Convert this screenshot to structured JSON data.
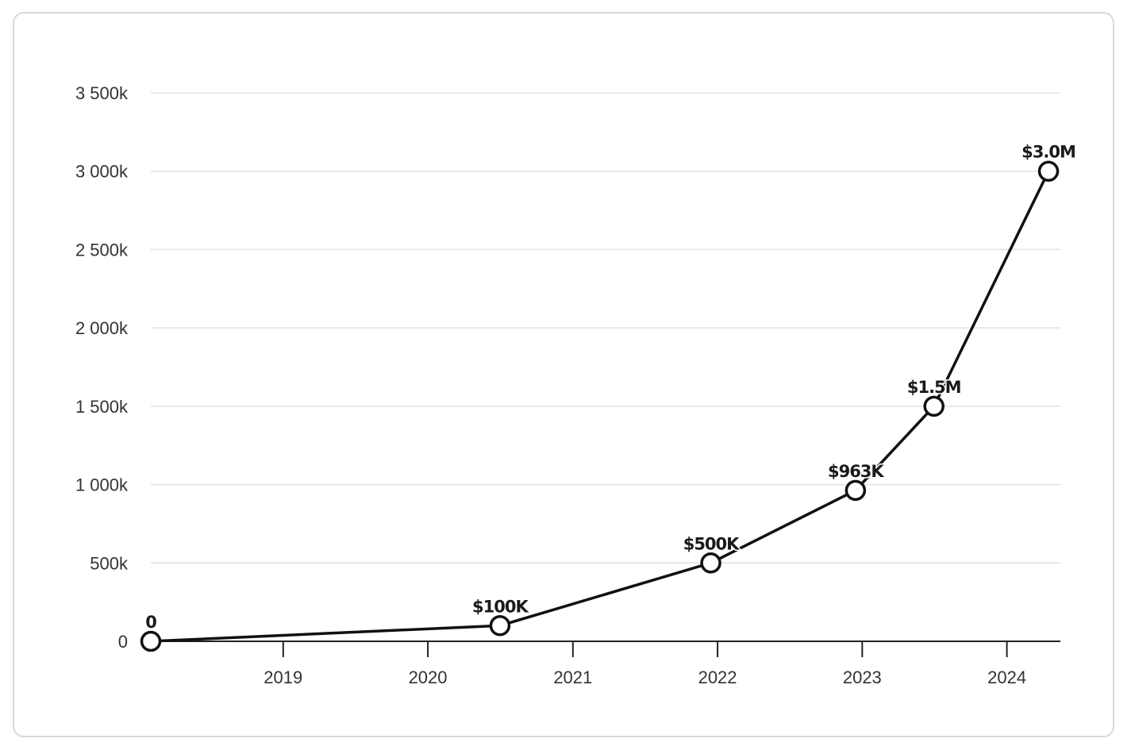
{
  "chart_data": {
    "type": "line",
    "title": "",
    "xlabel": "",
    "ylabel": "",
    "y_ticks": [
      {
        "value": 0,
        "label": "0"
      },
      {
        "value": 500000,
        "label": "500k"
      },
      {
        "value": 1000000,
        "label": "1 000k"
      },
      {
        "value": 1500000,
        "label": "1 500k"
      },
      {
        "value": 2000000,
        "label": "2 000k"
      },
      {
        "value": 2500000,
        "label": "2 500k"
      },
      {
        "value": 3000000,
        "label": "3 000k"
      },
      {
        "value": 3500000,
        "label": "3 500k"
      }
    ],
    "x_ticks": [
      {
        "value": "2019-01-01",
        "label": "2019"
      },
      {
        "value": "2020-01-01",
        "label": "2020"
      },
      {
        "value": "2021-01-01",
        "label": "2021"
      },
      {
        "value": "2022-01-01",
        "label": "2022"
      },
      {
        "value": "2023-01-01",
        "label": "2023"
      },
      {
        "value": "2024-01-01",
        "label": "2024"
      }
    ],
    "xlim": [
      "2018-02-01",
      "2024-05-15"
    ],
    "ylim": [
      0,
      3500000
    ],
    "grid": true,
    "series": [
      {
        "color": "#111111",
        "points": [
          {
            "x": "2018-02-01",
            "y": 0,
            "label": "0"
          },
          {
            "x": "2020-07-01",
            "y": 100000,
            "label": "$100K"
          },
          {
            "x": "2021-12-15",
            "y": 500000,
            "label": "$500K"
          },
          {
            "x": "2022-12-15",
            "y": 963000,
            "label": "$963K"
          },
          {
            "x": "2023-07-01",
            "y": 1500000,
            "label": "$1.5M"
          },
          {
            "x": "2024-04-15",
            "y": 3000000,
            "label": "$3.0M"
          }
        ]
      }
    ]
  }
}
